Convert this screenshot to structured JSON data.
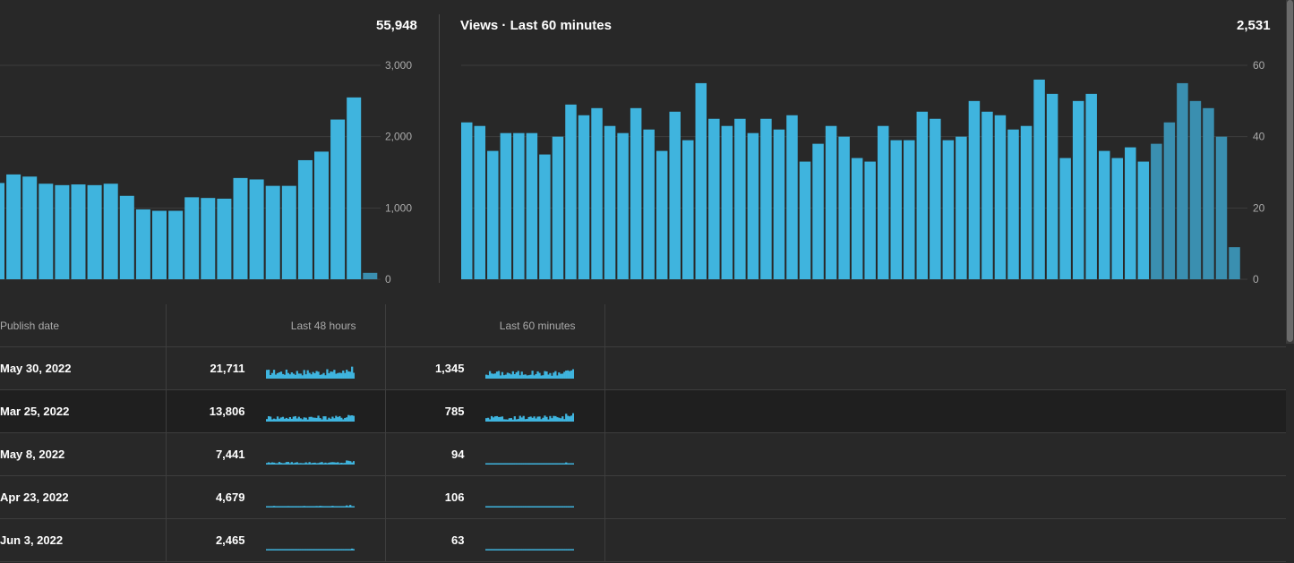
{
  "left_chart": {
    "total": "55,948",
    "y_ticks": [
      "3,000",
      "2,000",
      "1,000",
      "0"
    ],
    "chart_data": {
      "type": "bar",
      "ylim": [
        0,
        3000
      ],
      "grid": true,
      "values": [
        1350,
        1470,
        1440,
        1340,
        1320,
        1330,
        1320,
        1340,
        1170,
        980,
        960,
        960,
        1150,
        1140,
        1130,
        1420,
        1400,
        1310,
        1310,
        1670,
        1790,
        2240,
        2550,
        90
      ],
      "highlight_last": 1
    }
  },
  "right_chart": {
    "title": "Views · Last 60 minutes",
    "total": "2,531",
    "y_ticks": [
      "60",
      "40",
      "20",
      "0"
    ],
    "chart_data": {
      "type": "bar",
      "ylim": [
        0,
        60
      ],
      "grid": true,
      "values": [
        44,
        43,
        36,
        41,
        41,
        41,
        35,
        40,
        49,
        46,
        48,
        43,
        41,
        48,
        42,
        36,
        47,
        39,
        55,
        45,
        43,
        45,
        41,
        45,
        42,
        46,
        33,
        38,
        43,
        40,
        34,
        33,
        43,
        39,
        39,
        47,
        45,
        39,
        40,
        50,
        47,
        46,
        42,
        43,
        56,
        52,
        34,
        50,
        52,
        36,
        34,
        37,
        33,
        38,
        44,
        55,
        50,
        48,
        40,
        9
      ],
      "highlight_last": 7
    }
  },
  "table": {
    "headers": {
      "publish_date": "Publish date",
      "last48": "Last 48 hours",
      "last60": "Last 60 minutes"
    },
    "rows": [
      {
        "date": "May 30, 2022",
        "v48": "21,711",
        "v60": "1,345"
      },
      {
        "date": "Mar 25, 2022",
        "v48": "13,806",
        "v60": "785"
      },
      {
        "date": "May 8, 2022",
        "v48": "7,441",
        "v60": "94"
      },
      {
        "date": "Apr 23, 2022",
        "v48": "4,679",
        "v60": "106"
      },
      {
        "date": "Jun 3, 2022",
        "v48": "2,465",
        "v60": "63"
      }
    ]
  },
  "colors": {
    "bar": "#3fb4de",
    "bar_muted": "#3a8fb0",
    "grid": "#3d3d3d",
    "axis_text": "#aaaaaa"
  }
}
